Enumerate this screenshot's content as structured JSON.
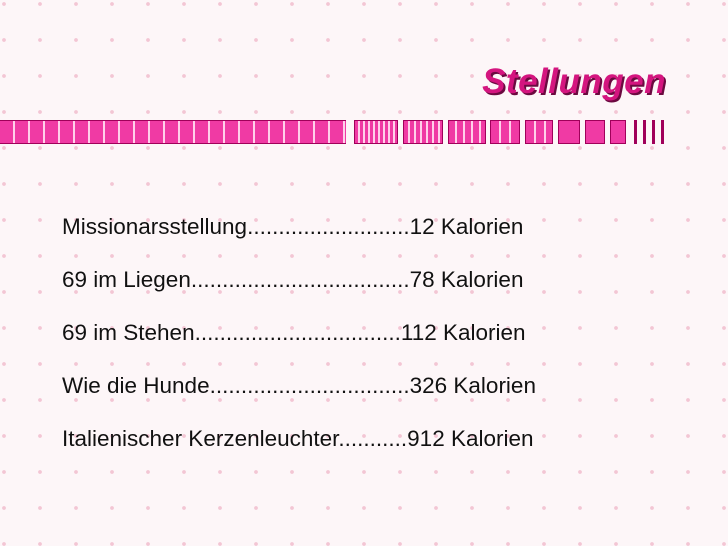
{
  "slide": {
    "title": "Stellungen",
    "items": [
      "Missionarsstellung..........................12 Kalorien",
      "69 im Liegen...................................78 Kalorien",
      "69 im Stehen.................................112 Kalorien",
      "Wie die Hunde................................326 Kalorien",
      "Italienischer Kerzenleuchter...........912 Kalorien"
    ]
  },
  "colors": {
    "title": "#d4157f",
    "accent_bar": "#f03aa4",
    "text": "#111111",
    "background": "#fdf6f8"
  }
}
